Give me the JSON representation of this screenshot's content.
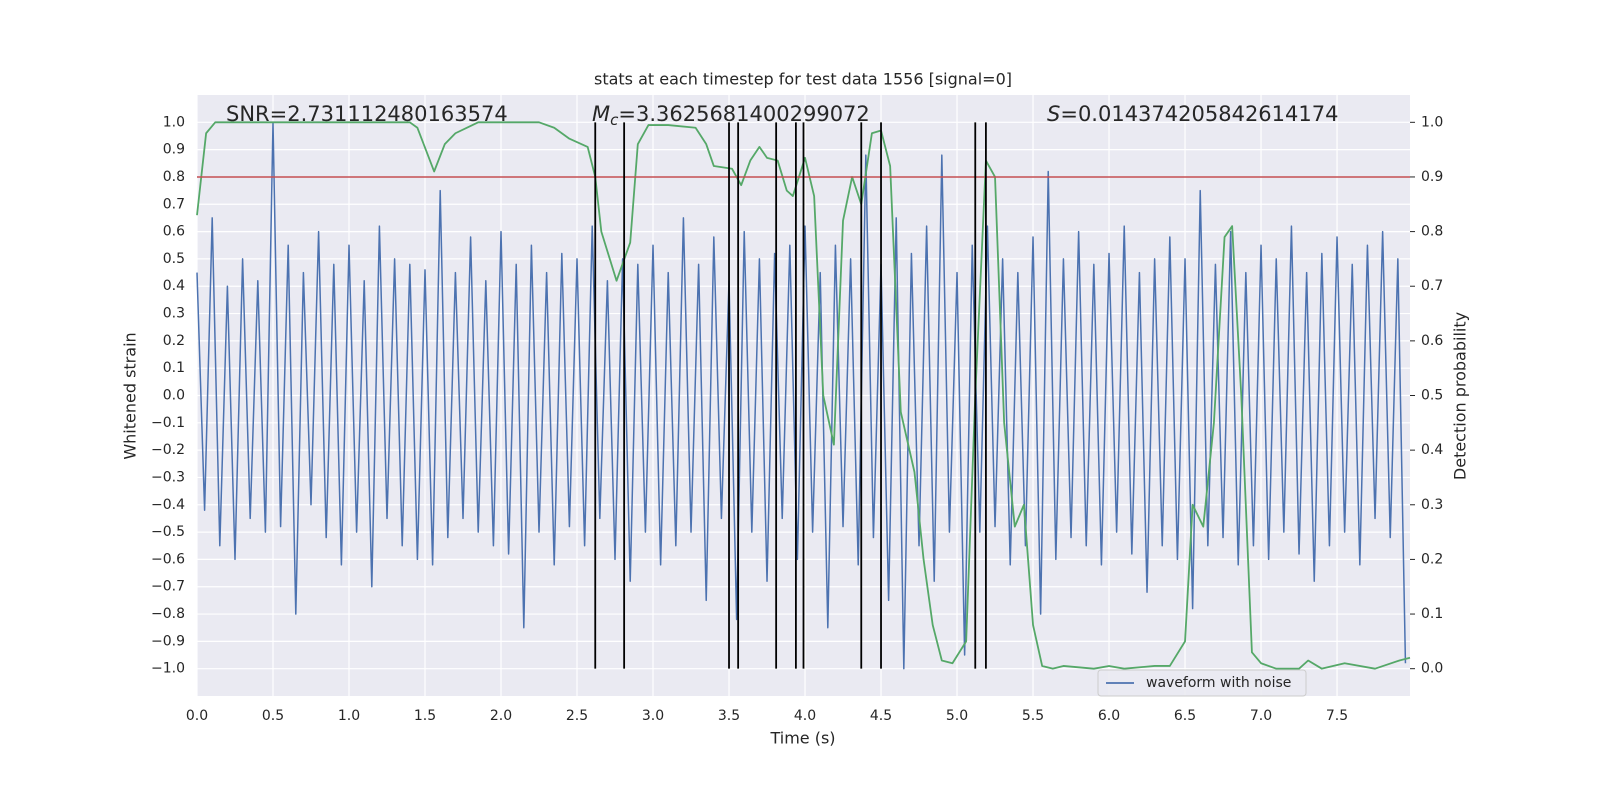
{
  "chart_data": {
    "type": "line",
    "title": "stats at each timestep for test data 1556 [signal=0]",
    "x_label": "Time (s)",
    "y_label": "Whitened strain",
    "y2_label": "Detection probability",
    "annotations": [
      {
        "symbol": "",
        "subscript": "",
        "text": "SNR=2.731112480163574"
      },
      {
        "symbol": "M",
        "subscript": "c",
        "text": "=3.3625681400299072"
      },
      {
        "symbol": "S",
        "subscript": "",
        "text": "=0.014374205842614174"
      }
    ],
    "xlim": [
      0,
      7.98
    ],
    "ylim": [
      -1.1,
      1.1
    ],
    "y2lim": [
      -0.05,
      1.05
    ],
    "grid": true,
    "legend": "lower right",
    "xticks": [
      {
        "value": 0,
        "label": "0.0"
      },
      0.5,
      {
        "value": 1,
        "label": "1.0"
      },
      1.5,
      {
        "value": 2,
        "label": "2.0"
      },
      2.5,
      {
        "value": 3,
        "label": "3.0"
      },
      3.5,
      {
        "value": 4,
        "label": "4.0"
      },
      4.5,
      {
        "value": 5,
        "label": "5.0"
      },
      5.5,
      {
        "value": 6,
        "label": "6.0"
      },
      6.5,
      {
        "value": 7,
        "label": "7.0"
      },
      7.5
    ],
    "yticks": [
      {
        "value": -1,
        "label": "−1.0"
      },
      {
        "value": -0.9,
        "label": "−0.9"
      },
      {
        "value": -0.8,
        "label": "−0.8"
      },
      {
        "value": -0.7,
        "label": "−0.7"
      },
      {
        "value": -0.6,
        "label": "−0.6"
      },
      {
        "value": -0.5,
        "label": "−0.5"
      },
      {
        "value": -0.4,
        "label": "−0.4"
      },
      {
        "value": -0.3,
        "label": "−0.3"
      },
      {
        "value": -0.2,
        "label": "−0.2"
      },
      {
        "value": -0.1,
        "label": "−0.1"
      },
      {
        "value": 0,
        "label": "0.0"
      },
      0.1,
      0.2,
      0.3,
      0.4,
      0.5,
      0.6,
      0.7,
      0.8,
      0.9,
      {
        "value": 1,
        "label": "1.0"
      }
    ],
    "y2ticks": [
      {
        "value": 0,
        "label": "0.0"
      },
      0.1,
      0.2,
      0.3,
      0.4,
      0.5,
      0.6,
      0.7,
      0.8,
      0.9,
      {
        "value": 1,
        "label": "1.0"
      }
    ],
    "series": [
      {
        "name": "waveform with noise",
        "color": "#4c72b0",
        "x": [
          0,
          0.05,
          0.1,
          0.15,
          0.2,
          0.25,
          0.3,
          0.35,
          0.4,
          0.45,
          0.5,
          0.55,
          0.6,
          0.65,
          0.7,
          0.75,
          0.8,
          0.85,
          0.9,
          0.95,
          1,
          1.05,
          1.1,
          1.15,
          1.2,
          1.25,
          1.3,
          1.35,
          1.4,
          1.45,
          1.5,
          1.55,
          1.6,
          1.65,
          1.7,
          1.75,
          1.8,
          1.85,
          1.9,
          1.95,
          2,
          2.05,
          2.1,
          2.15,
          2.2,
          2.25,
          2.3,
          2.35,
          2.4,
          2.45,
          2.5,
          2.55,
          2.6,
          2.65,
          2.7,
          2.75,
          2.8,
          2.85,
          2.9,
          2.95,
          3,
          3.05,
          3.1,
          3.15,
          3.2,
          3.25,
          3.3,
          3.35,
          3.4,
          3.45,
          3.5,
          3.55,
          3.6,
          3.65,
          3.7,
          3.75,
          3.8,
          3.85,
          3.9,
          3.95,
          4,
          4.05,
          4.1,
          4.15,
          4.2,
          4.25,
          4.3,
          4.35,
          4.4,
          4.45,
          4.5,
          4.55,
          4.6,
          4.65,
          4.7,
          4.75,
          4.8,
          4.85,
          4.9,
          4.95,
          5,
          5.05,
          5.1,
          5.15,
          5.2,
          5.25,
          5.3,
          5.35,
          5.4,
          5.45,
          5.5,
          5.55,
          5.6,
          5.65,
          5.7,
          5.75,
          5.8,
          5.85,
          5.9,
          5.95,
          6,
          6.05,
          6.1,
          6.15,
          6.2,
          6.25,
          6.3,
          6.35,
          6.4,
          6.45,
          6.5,
          6.55,
          6.6,
          6.65,
          6.7,
          6.75,
          6.8,
          6.85,
          6.9,
          6.95,
          7,
          7.05,
          7.1,
          7.15,
          7.2,
          7.25,
          7.3,
          7.35,
          7.4,
          7.45,
          7.5,
          7.55,
          7.6,
          7.65,
          7.7,
          7.75,
          7.8,
          7.85,
          7.9,
          7.95
        ],
        "values": [
          0.45,
          -0.42,
          0.65,
          -0.55,
          0.4,
          -0.6,
          0.5,
          -0.45,
          0.42,
          -0.5,
          1.0,
          -0.48,
          0.55,
          -0.8,
          0.45,
          -0.4,
          0.6,
          -0.52,
          0.48,
          -0.62,
          0.55,
          -0.5,
          0.42,
          -0.7,
          0.62,
          -0.45,
          0.5,
          -0.55,
          0.48,
          -0.6,
          0.46,
          -0.62,
          0.75,
          -0.52,
          0.45,
          -0.45,
          0.58,
          -0.5,
          0.42,
          -0.55,
          0.6,
          -0.58,
          0.48,
          -0.85,
          0.55,
          -0.5,
          0.45,
          -0.62,
          0.52,
          -0.48,
          0.5,
          -0.55,
          0.62,
          -0.45,
          0.42,
          -0.6,
          0.5,
          -0.68,
          0.48,
          -0.5,
          0.55,
          -0.62,
          0.45,
          -0.55,
          0.65,
          -0.5,
          0.48,
          -0.75,
          0.58,
          -0.45,
          0.42,
          -0.82,
          0.6,
          -0.5,
          0.5,
          -0.68,
          0.52,
          -0.45,
          0.55,
          -0.6,
          0.62,
          -0.5,
          0.45,
          -0.85,
          0.55,
          -0.48,
          0.5,
          -0.62,
          0.88,
          -0.52,
          0.48,
          -0.75,
          0.65,
          -1.0,
          0.52,
          -0.55,
          0.62,
          -0.68,
          0.88,
          -0.5,
          0.45,
          -0.95,
          0.55,
          -0.5,
          0.62,
          -0.48,
          0.5,
          -0.62,
          0.45,
          -0.55,
          0.58,
          -0.8,
          0.82,
          -0.6,
          0.5,
          -0.52,
          0.6,
          -0.55,
          0.48,
          -0.62,
          0.52,
          -0.5,
          0.62,
          -0.58,
          0.45,
          -0.72,
          0.5,
          -0.55,
          0.58,
          -0.6,
          0.5,
          -0.78,
          0.75,
          -0.55,
          0.48,
          -0.52,
          0.6,
          -0.62,
          0.45,
          -0.55,
          0.55,
          -0.6,
          0.5,
          -0.5,
          0.62,
          -0.58,
          0.45,
          -0.68,
          0.52,
          -0.55,
          0.58,
          -0.5,
          0.48,
          -0.62,
          0.55,
          -0.45,
          0.6,
          -0.52,
          0.5,
          -0.98
        ]
      },
      {
        "color": "#55a868",
        "axis": "y2",
        "x": [
          0,
          0.06,
          0.12,
          0.5,
          1.0,
          1.4,
          1.45,
          1.56,
          1.63,
          1.7,
          1.85,
          2.0,
          2.25,
          2.35,
          2.45,
          2.57,
          2.62,
          2.66,
          2.76,
          2.85,
          2.9,
          2.97,
          3.1,
          3.28,
          3.35,
          3.4,
          3.52,
          3.58,
          3.64,
          3.7,
          3.75,
          3.82,
          3.88,
          3.92,
          4.0,
          4.06,
          4.12,
          4.19,
          4.25,
          4.31,
          4.37,
          4.44,
          4.5,
          4.56,
          4.63,
          4.72,
          4.78,
          4.84,
          4.9,
          4.97,
          5.06,
          5.12,
          5.19,
          5.25,
          5.31,
          5.38,
          5.44,
          5.5,
          5.56,
          5.63,
          5.7,
          5.9,
          6.0,
          6.1,
          6.3,
          6.4,
          6.5,
          6.55,
          6.62,
          6.69,
          6.76,
          6.81,
          6.87,
          6.94,
          7.0,
          7.1,
          7.25,
          7.31,
          7.4,
          7.55,
          7.75,
          7.91,
          7.98
        ],
        "values": [
          0.83,
          0.98,
          1.0,
          1.0,
          1.0,
          1.0,
          0.99,
          0.91,
          0.96,
          0.98,
          1.0,
          1.0,
          1.0,
          0.99,
          0.97,
          0.955,
          0.9,
          0.8,
          0.71,
          0.78,
          0.96,
          0.995,
          0.995,
          0.99,
          0.96,
          0.92,
          0.915,
          0.885,
          0.93,
          0.955,
          0.935,
          0.93,
          0.875,
          0.865,
          0.935,
          0.865,
          0.5,
          0.41,
          0.82,
          0.9,
          0.85,
          0.98,
          0.985,
          0.92,
          0.47,
          0.36,
          0.2,
          0.08,
          0.015,
          0.01,
          0.05,
          0.5,
          0.93,
          0.9,
          0.45,
          0.26,
          0.3,
          0.08,
          0.005,
          0.0,
          0.005,
          0.0,
          0.005,
          0.0,
          0.005,
          0.005,
          0.05,
          0.3,
          0.26,
          0.45,
          0.79,
          0.81,
          0.5,
          0.03,
          0.01,
          0.0,
          0.0,
          0.015,
          0.0,
          0.01,
          0.0,
          0.015,
          0.02
        ]
      }
    ],
    "hline": {
      "y": 0.8,
      "color": "#c44e52"
    },
    "vlines": {
      "x": [
        2.62,
        2.81,
        3.5,
        3.56,
        3.81,
        3.94,
        3.99,
        4.37,
        4.5,
        5.12,
        5.19
      ],
      "ymin": -1,
      "ymax": 1,
      "color": "#000000"
    }
  }
}
